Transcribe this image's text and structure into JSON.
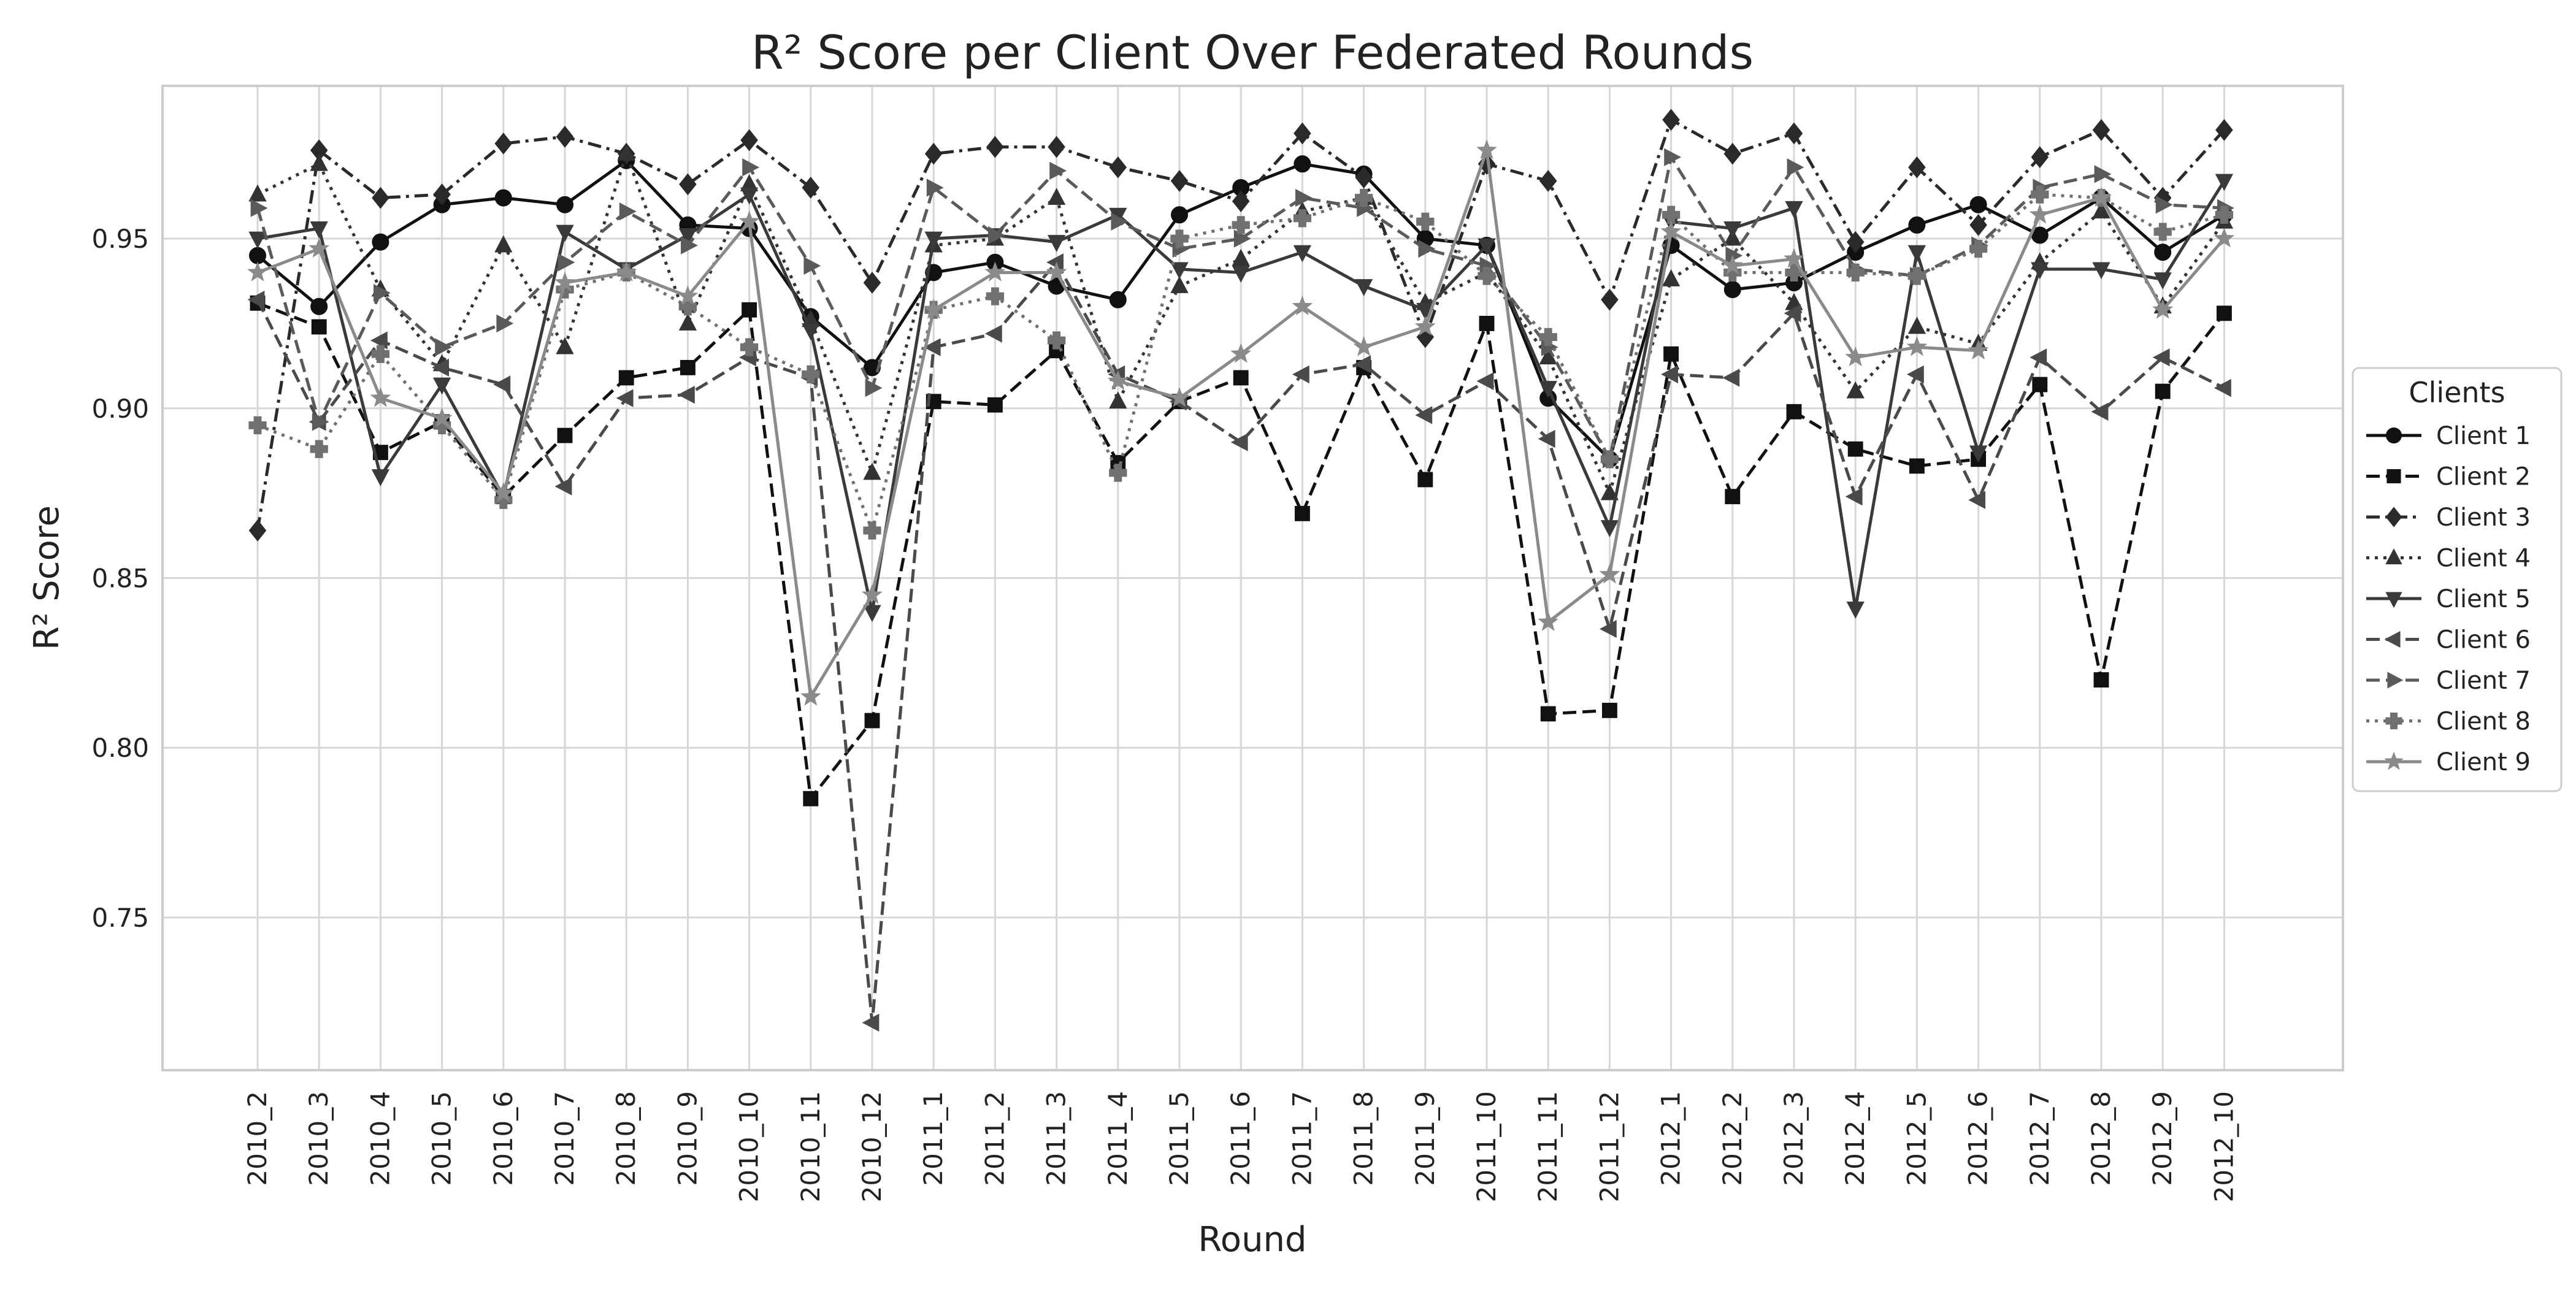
{
  "chart_data": {
    "type": "line",
    "title": "R² Score per Client Over Federated Rounds",
    "xlabel": "Round",
    "ylabel": "R² Score",
    "ylim": [
      0.705,
      0.995
    ],
    "yticks": [
      0.75,
      0.8,
      0.85,
      0.9,
      0.95
    ],
    "ytick_labels": [
      "0.75",
      "0.80",
      "0.85",
      "0.90",
      "0.95"
    ],
    "grid": true,
    "legend": {
      "title": "Clients",
      "placement": "right-outside"
    },
    "categories": [
      "2010_2",
      "2010_3",
      "2010_4",
      "2010_5",
      "2010_6",
      "2010_7",
      "2010_8",
      "2010_9",
      "2010_10",
      "2010_11",
      "2010_12",
      "2011_1",
      "2011_2",
      "2011_3",
      "2011_4",
      "2011_5",
      "2011_6",
      "2011_7",
      "2011_8",
      "2011_9",
      "2011_10",
      "2011_11",
      "2011_12",
      "2012_1",
      "2012_2",
      "2012_3",
      "2012_4",
      "2012_5",
      "2012_6",
      "2012_7",
      "2012_8",
      "2012_9",
      "2012_10"
    ],
    "series": [
      {
        "name": "Client 1",
        "color": "#111111",
        "dash": "solid",
        "marker": "circle",
        "values": [
          0.945,
          0.93,
          0.949,
          0.96,
          0.962,
          0.96,
          0.973,
          0.954,
          0.953,
          0.927,
          0.912,
          0.94,
          0.943,
          0.936,
          0.932,
          0.957,
          0.965,
          0.972,
          0.969,
          0.95,
          0.948,
          0.903,
          0.885,
          0.948,
          0.935,
          0.937,
          0.946,
          0.954,
          0.96,
          0.951,
          0.962,
          0.946,
          0.957
        ]
      },
      {
        "name": "Client 2",
        "color": "#111111",
        "dash": "dashed",
        "marker": "square",
        "values": [
          0.931,
          0.924,
          0.887,
          0.896,
          0.874,
          0.892,
          0.909,
          0.912,
          0.929,
          0.785,
          0.808,
          0.902,
          0.901,
          0.917,
          0.884,
          0.902,
          0.909,
          0.869,
          0.912,
          0.879,
          0.925,
          0.81,
          0.811,
          0.916,
          0.874,
          0.899,
          0.888,
          0.883,
          0.885,
          0.907,
          0.82,
          0.905,
          0.928
        ]
      },
      {
        "name": "Client 3",
        "color": "#2a2a2a",
        "dash": "dashdot",
        "marker": "diamond",
        "values": [
          0.864,
          0.976,
          0.962,
          0.963,
          0.978,
          0.98,
          0.975,
          0.966,
          0.979,
          0.965,
          0.937,
          0.975,
          0.977,
          0.977,
          0.971,
          0.967,
          0.961,
          0.981,
          0.968,
          0.921,
          0.972,
          0.967,
          0.932,
          0.985,
          0.975,
          0.981,
          0.949,
          0.971,
          0.954,
          0.974,
          0.982,
          0.962,
          0.982
        ]
      },
      {
        "name": "Client 4",
        "color": "#333333",
        "dash": "dotted",
        "marker": "triangle-up",
        "values": [
          0.963,
          0.972,
          0.935,
          0.913,
          0.948,
          0.918,
          0.975,
          0.925,
          0.966,
          0.926,
          0.881,
          0.948,
          0.95,
          0.962,
          0.902,
          0.936,
          0.944,
          0.958,
          0.962,
          0.931,
          0.94,
          0.915,
          0.875,
          0.938,
          0.95,
          0.931,
          0.905,
          0.924,
          0.919,
          0.943,
          0.958,
          0.93,
          0.955
        ]
      },
      {
        "name": "Client 5",
        "color": "#3a3a3a",
        "dash": "solid",
        "marker": "triangle-down",
        "values": [
          0.95,
          0.953,
          0.88,
          0.907,
          0.874,
          0.952,
          0.941,
          0.951,
          0.963,
          0.923,
          0.84,
          0.95,
          0.951,
          0.949,
          0.957,
          0.941,
          0.94,
          0.946,
          0.936,
          0.929,
          0.948,
          0.906,
          0.865,
          0.955,
          0.953,
          0.959,
          0.841,
          0.946,
          0.887,
          0.941,
          0.941,
          0.938,
          0.967
        ]
      },
      {
        "name": "Client 6",
        "color": "#4a4a4a",
        "dash": "dashed",
        "marker": "triangle-left",
        "values": [
          0.932,
          0.896,
          0.92,
          0.912,
          0.907,
          0.877,
          0.903,
          0.904,
          0.915,
          0.909,
          0.719,
          0.918,
          0.922,
          0.943,
          0.91,
          0.902,
          0.89,
          0.91,
          0.913,
          0.898,
          0.908,
          0.891,
          0.835,
          0.91,
          0.909,
          0.928,
          0.874,
          0.91,
          0.873,
          0.915,
          0.899,
          0.915,
          0.906
        ]
      },
      {
        "name": "Client 7",
        "color": "#5a5a5a",
        "dash": "dashed",
        "marker": "triangle-right",
        "values": [
          0.959,
          0.896,
          0.934,
          0.918,
          0.925,
          0.943,
          0.958,
          0.948,
          0.971,
          0.942,
          0.906,
          0.965,
          0.951,
          0.97,
          0.955,
          0.947,
          0.95,
          0.962,
          0.959,
          0.947,
          0.942,
          0.918,
          0.885,
          0.974,
          0.945,
          0.971,
          0.941,
          0.939,
          0.948,
          0.965,
          0.969,
          0.96,
          0.959
        ]
      },
      {
        "name": "Client 8",
        "color": "#707070",
        "dash": "dotted",
        "marker": "plus",
        "values": [
          0.895,
          0.888,
          0.916,
          0.895,
          0.873,
          0.935,
          0.94,
          0.93,
          0.918,
          0.91,
          0.864,
          0.929,
          0.933,
          0.92,
          0.881,
          0.95,
          0.954,
          0.956,
          0.962,
          0.955,
          0.939,
          0.921,
          0.885,
          0.957,
          0.94,
          0.94,
          0.94,
          0.939,
          0.947,
          0.963,
          0.962,
          0.952,
          0.957
        ]
      },
      {
        "name": "Client 9",
        "color": "#8a8a8a",
        "dash": "solid",
        "marker": "star",
        "values": [
          0.94,
          0.947,
          0.903,
          0.897,
          0.875,
          0.937,
          0.94,
          0.933,
          0.955,
          0.815,
          0.845,
          0.929,
          0.94,
          0.94,
          0.908,
          0.903,
          0.916,
          0.93,
          0.918,
          0.924,
          0.976,
          0.837,
          0.851,
          0.952,
          0.942,
          0.944,
          0.915,
          0.918,
          0.917,
          0.957,
          0.962,
          0.929,
          0.95
        ]
      }
    ]
  }
}
